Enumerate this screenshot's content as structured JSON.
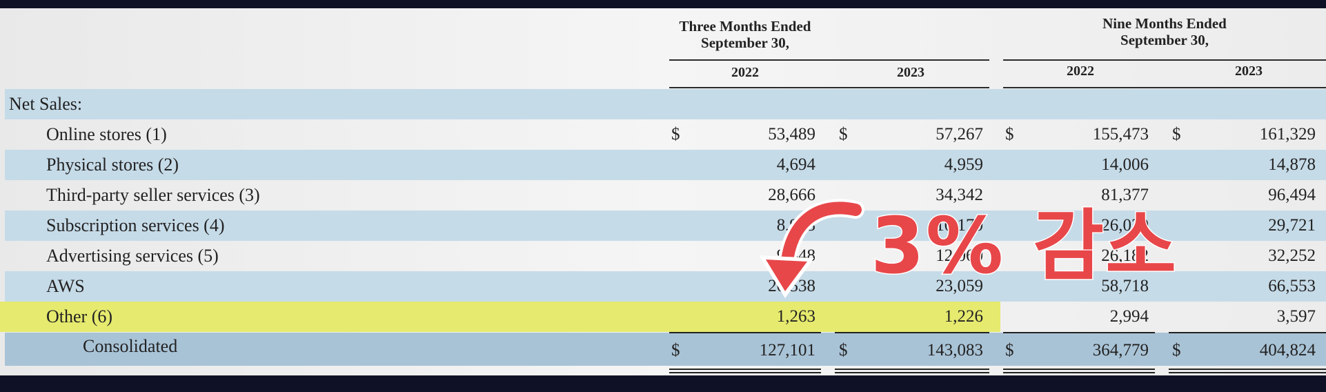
{
  "header": {
    "three_months_line1": "Three Months Ended",
    "three_months_line2": "September 30,",
    "nine_months_line1": "Nine Months Ended",
    "nine_months_line2": "September 30,",
    "years": [
      "2022",
      "2023",
      "2022",
      "2023"
    ]
  },
  "currency_symbol": "$",
  "section_label": "Net Sales:",
  "rows": [
    {
      "label": "Online stores (1)",
      "values": [
        "53,489",
        "57,267",
        "155,473",
        "161,329"
      ],
      "currency": true
    },
    {
      "label": "Physical stores (2)",
      "values": [
        "4,694",
        "4,959",
        "14,006",
        "14,878"
      ]
    },
    {
      "label": "Third-party seller services (3)",
      "values": [
        "28,666",
        "34,342",
        "81,377",
        "96,494"
      ]
    },
    {
      "label": "Subscription services (4)",
      "values": [
        "8,903",
        "10,170",
        "26,029",
        "29,721"
      ]
    },
    {
      "label": "Advertising services (5)",
      "values": [
        "9,548",
        "12,060",
        "26,182",
        "32,252"
      ]
    },
    {
      "label": "AWS",
      "values": [
        "20,538",
        "23,059",
        "58,718",
        "66,553"
      ]
    },
    {
      "label": "Other (6)",
      "values": [
        "1,263",
        "1,226",
        "2,994",
        "3,597"
      ],
      "highlighted": true
    }
  ],
  "total": {
    "label": "Consolidated",
    "values": [
      "127,101",
      "143,083",
      "364,779",
      "404,824"
    ]
  },
  "overlay": {
    "text": "3% 감소",
    "color": "#e8474a"
  },
  "colors": {
    "row_blue": "#c6dbe8",
    "highlight": "#e6ea6e",
    "total_row": "#a9c3d6"
  }
}
